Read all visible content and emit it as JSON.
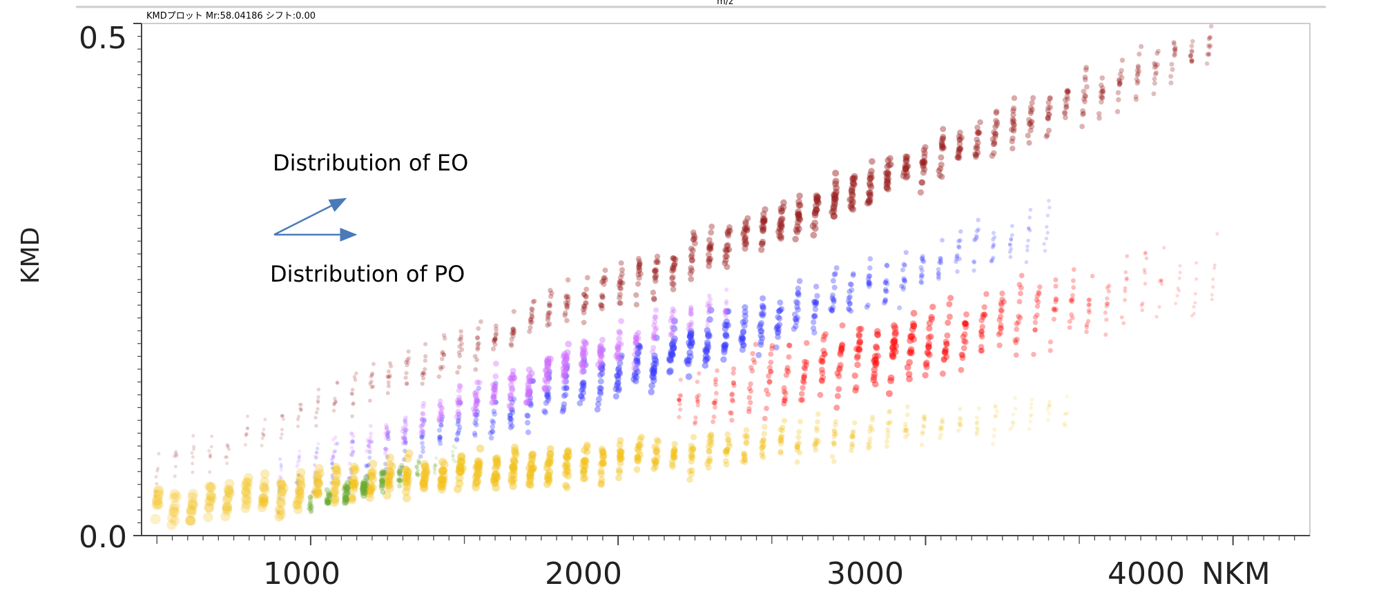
{
  "chart_data": {
    "type": "scatter",
    "title": "",
    "header": "KMDプロット Mr:58.04186 シフト:0.00",
    "top_label": "m/z",
    "xlabel": "NKM",
    "ylabel": "KMD",
    "xlim": [
      450,
      4250
    ],
    "ylim": [
      0.0,
      0.5
    ],
    "x_tick_labels": [
      "1000",
      "2000",
      "3000",
      "4000"
    ],
    "y_tick_labels": [
      "0.0",
      "0.5"
    ],
    "grid": false,
    "annotations": [
      "Distribution of EO",
      "Distribution of PO"
    ],
    "series": [
      {
        "color": "#9a2020",
        "x_range": [
          500,
          3950
        ],
        "kmd_start": 0.06,
        "kmd_end": 0.48,
        "spread": 0.035,
        "peak_x": 2700
      },
      {
        "color": "#3a3aff",
        "x_range": [
          900,
          3400
        ],
        "kmd_start": 0.05,
        "kmd_end": 0.3,
        "spread": 0.04,
        "peak_x": 2200
      },
      {
        "color": "#d070ff",
        "x_range": [
          900,
          2400
        ],
        "kmd_start": 0.06,
        "kmd_end": 0.23,
        "spread": 0.03,
        "peak_x": 1800
      },
      {
        "color": "#ff1010",
        "x_range": [
          2200,
          3950
        ],
        "kmd_start": 0.13,
        "kmd_end": 0.26,
        "spread": 0.05,
        "peak_x": 2900
      },
      {
        "color": "#f2c21f",
        "x_range": [
          500,
          3500
        ],
        "kmd_start": 0.03,
        "kmd_end": 0.12,
        "spread": 0.03,
        "peak_x": 1700
      },
      {
        "color": "#6aaa30",
        "x_range": [
          1000,
          1500
        ],
        "kmd_start": 0.03,
        "kmd_end": 0.08,
        "spread": 0.015,
        "peak_x": 1150
      }
    ],
    "colors": {
      "axis": "#444444",
      "arrow": "#4a7ab8",
      "frame": "#bbbbbb"
    }
  }
}
